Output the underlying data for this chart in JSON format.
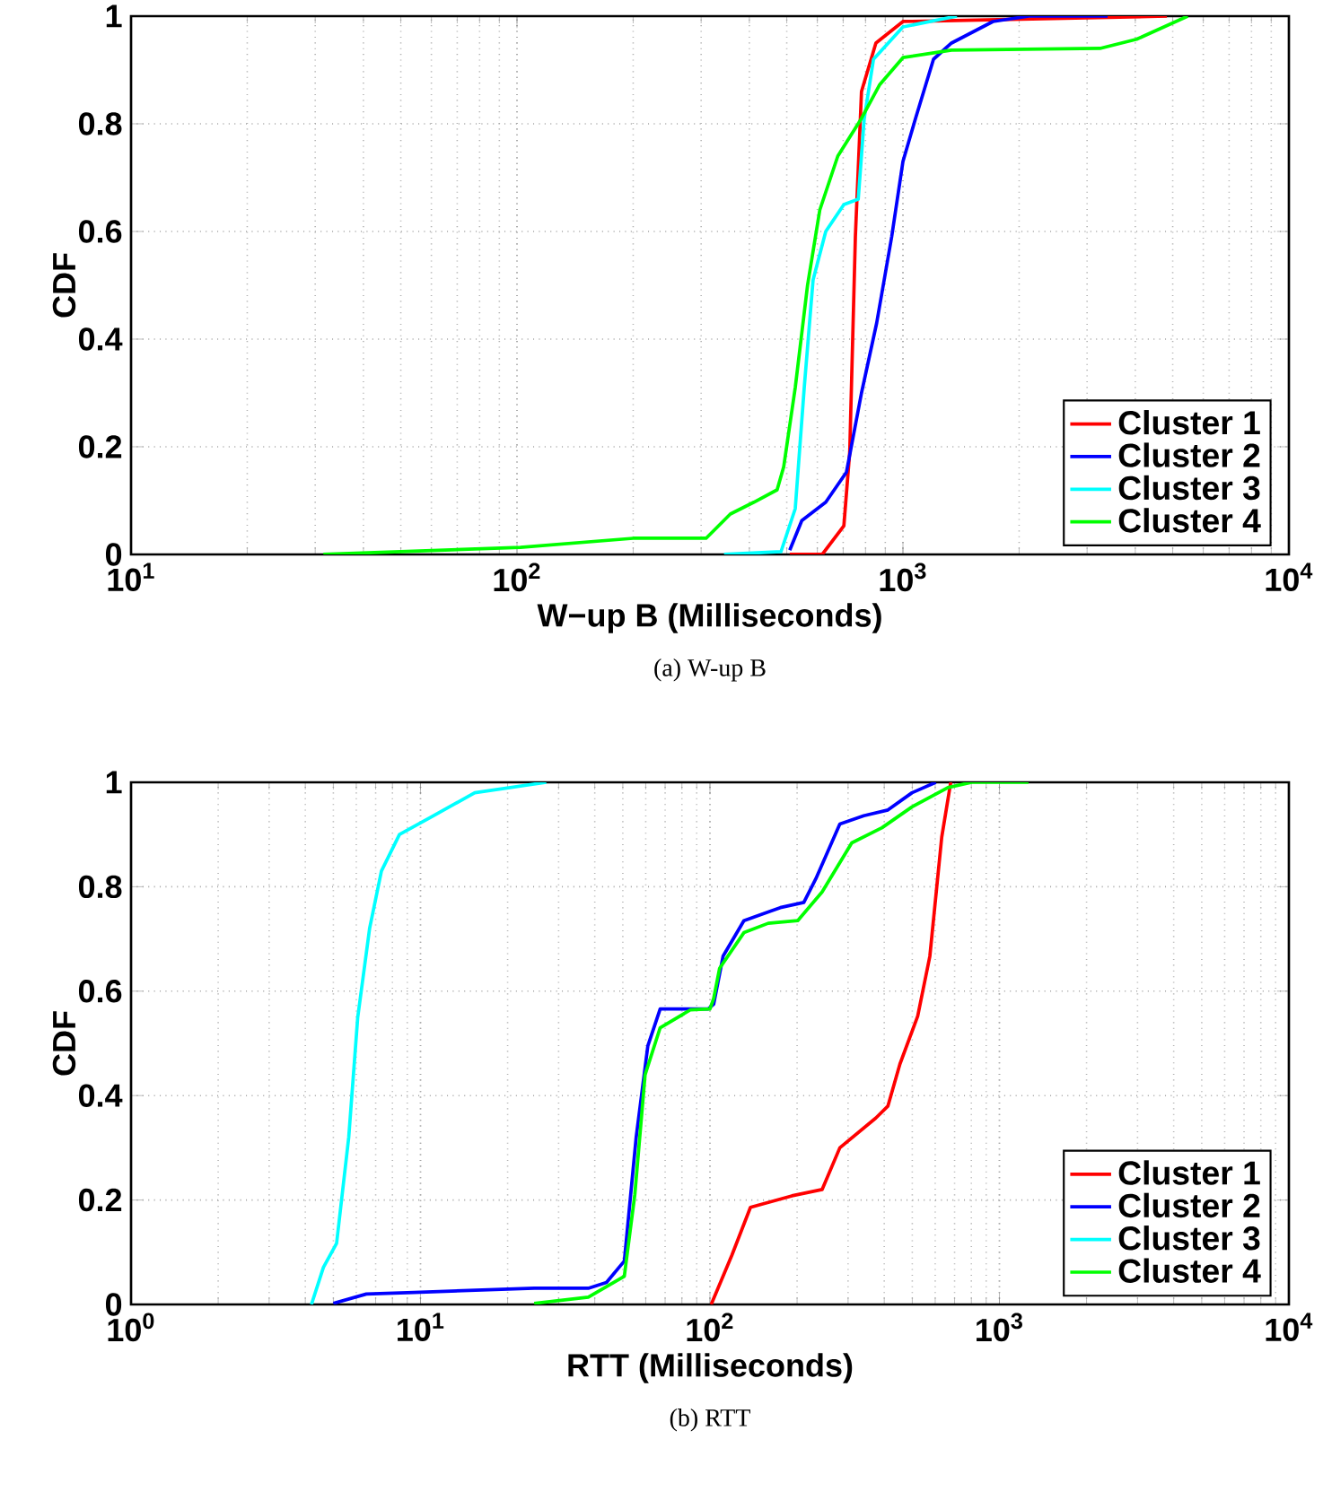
{
  "chart_data": [
    {
      "type": "line",
      "xlabel": "W−up B (Milliseconds)",
      "ylabel": "CDF",
      "log": "x",
      "grid": true,
      "legend": "bottom right",
      "xlim": [
        10,
        10000
      ],
      "ylim": [
        0,
        1
      ],
      "xticks": [
        {
          "value": 10,
          "label": "10$^{1}$"
        },
        {
          "value": 100,
          "label": "10$^{2}$"
        },
        {
          "value": 1000,
          "label": "10$^{3}$"
        },
        {
          "value": 10000,
          "label": "10$^{4}$"
        }
      ],
      "yticks": [
        0,
        0.2,
        0.4,
        0.6,
        0.8,
        1
      ],
      "annotations": [
        "(a)  W-up B"
      ],
      "series": [
        {
          "name": "Cluster 1",
          "color": "#ff0000",
          "x": [
            509,
            618,
            703,
            728,
            753,
            781,
            851,
            1000,
            4830
          ],
          "values": [
            0,
            0,
            0.053,
            0.19,
            0.59,
            0.86,
            0.95,
            0.99,
            1.0
          ]
        },
        {
          "name": "Cluster 2",
          "color": "#0000ff",
          "x": [
            509,
            547,
            631,
            714,
            781,
            855,
            935,
            1000,
            1078,
            1200,
            1336,
            1711,
            2120,
            3390
          ],
          "values": [
            0.008,
            0.063,
            0.097,
            0.153,
            0.3,
            0.43,
            0.59,
            0.73,
            0.81,
            0.92,
            0.95,
            0.99,
            1.0,
            1.0
          ]
        },
        {
          "name": "Cluster 3",
          "color": "#00ffff",
          "x": [
            344,
            483,
            526,
            555,
            585,
            631,
            703,
            766,
            794,
            839,
            1000,
            1380
          ],
          "values": [
            0,
            0.005,
            0.085,
            0.31,
            0.51,
            0.6,
            0.65,
            0.66,
            0.81,
            0.92,
            0.98,
            1.0
          ]
        },
        {
          "name": "Cluster 4",
          "color": "#00ff00",
          "x": [
            31.5,
            102,
            200,
            309,
            357,
            411,
            472,
            491,
            526,
            566,
            609,
            678,
            781,
            871,
            1000,
            1336,
            3240,
            4030,
            5470
          ],
          "values": [
            0,
            0.013,
            0.03,
            0.03,
            0.075,
            0.097,
            0.12,
            0.163,
            0.31,
            0.5,
            0.64,
            0.74,
            0.81,
            0.873,
            0.923,
            0.937,
            0.94,
            0.957,
            1.0
          ]
        }
      ]
    },
    {
      "type": "line",
      "xlabel": "RTT (Milliseconds)",
      "ylabel": "CDF",
      "log": "x",
      "grid": true,
      "legend": "bottom right",
      "xlim": [
        1,
        10000
      ],
      "ylim": [
        0,
        1
      ],
      "xticks": [
        {
          "value": 1,
          "label": "10$^{0}$"
        },
        {
          "value": 10,
          "label": "10$^{1}$"
        },
        {
          "value": 100,
          "label": "10$^{2}$"
        },
        {
          "value": 1000,
          "label": "10$^{3}$"
        },
        {
          "value": 10000,
          "label": "10$^{4}$"
        }
      ],
      "yticks": [
        0,
        0.2,
        0.4,
        0.6,
        0.8,
        1
      ],
      "annotations": [
        "(b)  RTT"
      ],
      "series": [
        {
          "name": "Cluster 1",
          "color": "#ff0000",
          "x": [
            101,
            119,
            138,
            192,
            244,
            281,
            374,
            412,
            453,
            522,
            575,
            632,
            679
          ],
          "values": [
            0,
            0.094,
            0.186,
            0.208,
            0.22,
            0.3,
            0.357,
            0.38,
            0.46,
            0.552,
            0.667,
            0.895,
            1.0
          ]
        },
        {
          "name": "Cluster 2",
          "color": "#0000ff",
          "x": [
            5.0,
            6.5,
            9.5,
            24.7,
            38,
            43.9,
            50.6,
            55.6,
            61,
            67.3,
            98.6,
            103,
            111,
            131,
            175,
            211,
            232,
            281,
            340,
            412,
            499,
            603
          ],
          "values": [
            0.002,
            0.02,
            0.023,
            0.031,
            0.031,
            0.042,
            0.083,
            0.32,
            0.495,
            0.566,
            0.566,
            0.575,
            0.667,
            0.735,
            0.76,
            0.77,
            0.815,
            0.92,
            0.936,
            0.947,
            0.98,
            1.0
          ]
        },
        {
          "name": "Cluster 3",
          "color": "#00ffff",
          "x": [
            4.2,
            4.62,
            5.13,
            5.65,
            6.07,
            6.67,
            7.33,
            8.46,
            11,
            15.4,
            27.2
          ],
          "values": [
            0,
            0.071,
            0.117,
            0.32,
            0.55,
            0.72,
            0.83,
            0.9,
            0.935,
            0.98,
            1.0
          ]
        },
        {
          "name": "Cluster 4",
          "color": "#00ff00",
          "x": [
            24.7,
            38,
            50.6,
            55,
            59.7,
            67.3,
            85.5,
            100,
            103,
            108,
            131,
            159,
            201,
            244,
            309,
            393,
            499,
            664,
            802,
            1260
          ],
          "values": [
            0.002,
            0.014,
            0.054,
            0.21,
            0.44,
            0.53,
            0.564,
            0.566,
            0.586,
            0.644,
            0.712,
            0.73,
            0.735,
            0.79,
            0.884,
            0.913,
            0.953,
            0.99,
            1.0,
            1.0
          ]
        }
      ]
    }
  ]
}
